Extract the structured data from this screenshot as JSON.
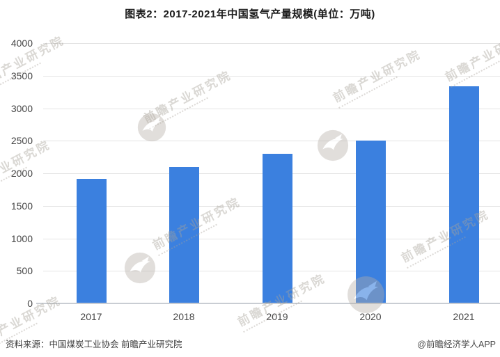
{
  "title": "图表2：2017-2021年中国氢气产量规模(单位：万吨)",
  "chart_data": {
    "type": "bar",
    "title": "图表2：2017-2021年中国氢气产量规模(单位：万吨)",
    "unit": "万吨",
    "categories": [
      "2017",
      "2018",
      "2019",
      "2020",
      "2021"
    ],
    "values": [
      1915,
      2100,
      2300,
      2500,
      3342
    ],
    "xlabel": "",
    "ylabel": "",
    "ylim": [
      0,
      4000
    ],
    "yticks": [
      0,
      500,
      1000,
      1500,
      2000,
      2500,
      3000,
      3500,
      4000
    ],
    "bar_color": "#3B80DF",
    "gridline_color": "#e4e4e4",
    "axis_line_color": "#c9cdd3",
    "grid": "horizontal",
    "legend": "none"
  },
  "footer": {
    "source": "资料来源：中国煤炭工业协会 前瞻产业研究院",
    "credit": "@前瞻经济学人APP"
  },
  "watermark": {
    "text": "前瞻产业研究院"
  }
}
